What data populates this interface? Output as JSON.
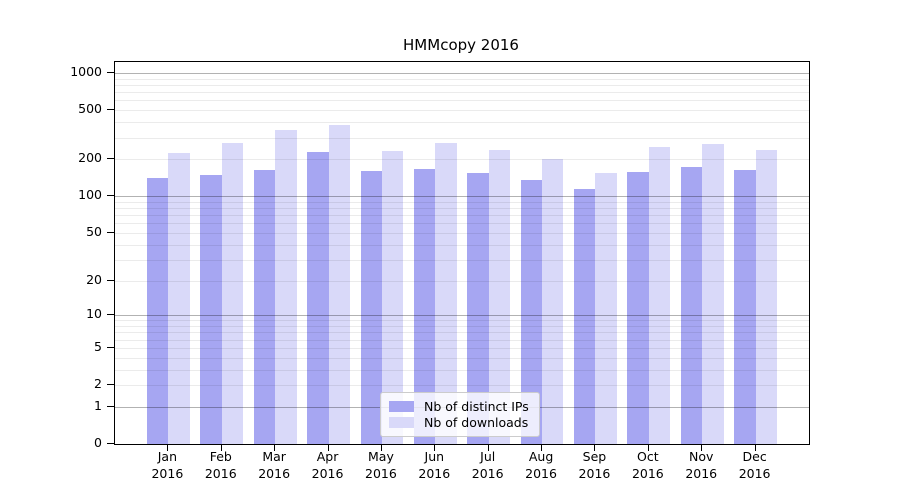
{
  "chart_data": {
    "type": "bar",
    "title": "HMMcopy 2016",
    "categories": [
      "Jan",
      "Feb",
      "Mar",
      "Apr",
      "May",
      "Jun",
      "Jul",
      "Aug",
      "Sep",
      "Oct",
      "Nov",
      "Dec"
    ],
    "year": "2016",
    "series": [
      {
        "name": "Nb of distinct IPs",
        "color": "#a6a6f2",
        "values": [
          141,
          148,
          165,
          231,
          160,
          167,
          155,
          135,
          114,
          158,
          174,
          164
        ]
      },
      {
        "name": "Nb of downloads",
        "color": "#d9d9f9",
        "values": [
          225,
          270,
          345,
          380,
          233,
          270,
          240,
          200,
          154,
          250,
          265,
          239
        ]
      }
    ],
    "yscale": "log1p",
    "yticks": [
      0,
      1,
      2,
      5,
      10,
      20,
      50,
      100,
      200,
      500,
      1000
    ],
    "ylim": [
      0,
      1230
    ],
    "xlabel": "",
    "ylabel": "",
    "grid": "on",
    "legend_position": "lower center"
  }
}
